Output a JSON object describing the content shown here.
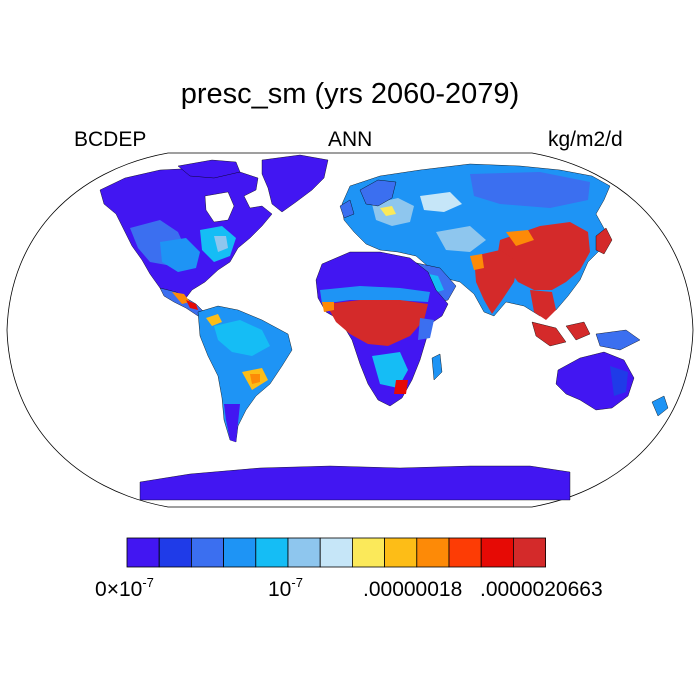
{
  "title": "presc_sm (yrs 2060-2079)",
  "subtitle_left": "BCDEP",
  "subtitle_center": "ANN",
  "subtitle_right": "kg/m2/d",
  "colors": {
    "background": "#ffffff",
    "ocean": "#ffffff",
    "outline": "#000000"
  },
  "colorbar": {
    "colors": [
      "#4216f2",
      "#1f3be8",
      "#3b6ff0",
      "#1e94f5",
      "#15bdf5",
      "#8ec6ee",
      "#c6e6f8",
      "#fbe95a",
      "#fdbd17",
      "#fd8a07",
      "#fd3c05",
      "#e60a05",
      "#d42a2a"
    ],
    "labels": {
      "l0_base": "0",
      "l0_times": "×",
      "l0_pow": "10",
      "l0_exp": "-7",
      "l1_pow": "10",
      "l1_exp": "-7",
      "l2": ".00000018",
      "l3": ".0000020663"
    }
  }
}
